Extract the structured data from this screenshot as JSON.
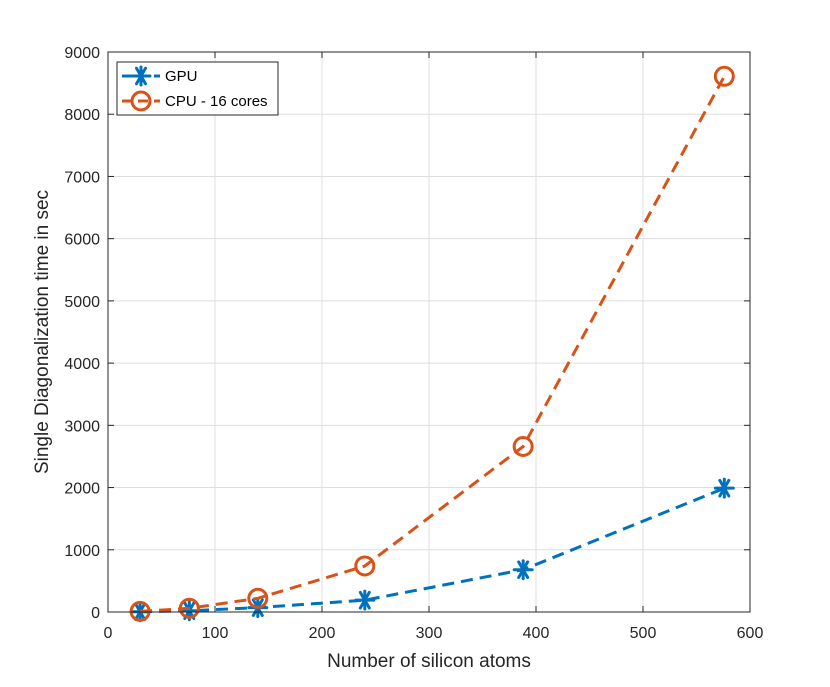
{
  "chart_data": {
    "type": "line",
    "title": "",
    "xlabel": "Number of silicon atoms",
    "ylabel": "Single Diagonalization time in sec",
    "xlim": [
      0,
      600
    ],
    "ylim": [
      0,
      9000
    ],
    "xticks": [
      0,
      100,
      200,
      300,
      400,
      500,
      600
    ],
    "yticks": [
      0,
      1000,
      2000,
      3000,
      4000,
      5000,
      6000,
      7000,
      8000,
      9000
    ],
    "grid": true,
    "legend_position": "top-left",
    "series": [
      {
        "name": "GPU",
        "color": "#0072BD",
        "marker": "asterisk",
        "line_style": "dashed",
        "x": [
          30,
          76,
          140,
          240,
          388,
          576
        ],
        "y": [
          5,
          20,
          70,
          190,
          680,
          1990
        ]
      },
      {
        "name": "CPU - 16 cores",
        "color": "#D95319",
        "marker": "circle",
        "line_style": "dashed",
        "x": [
          30,
          76,
          140,
          240,
          388,
          576
        ],
        "y": [
          10,
          60,
          220,
          740,
          2660,
          8610
        ]
      }
    ]
  }
}
